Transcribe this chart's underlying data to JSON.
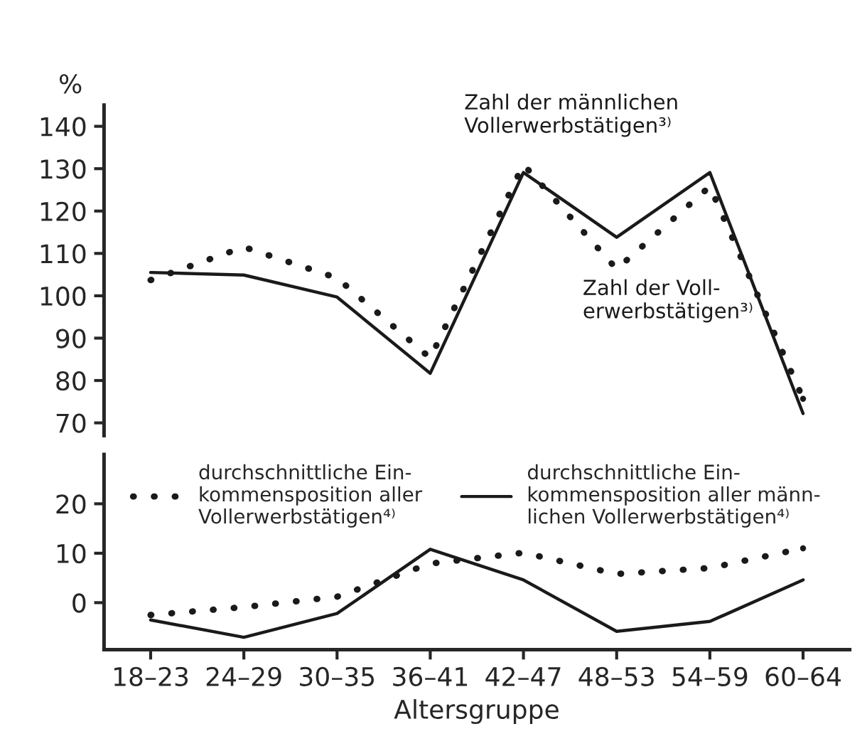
{
  "chart_data": [
    {
      "type": "line",
      "ylabel": "%",
      "ylim": [
        67,
        145
      ],
      "yticks": [
        70,
        80,
        90,
        100,
        110,
        120,
        130,
        140
      ],
      "tick_labels": "y",
      "grid": false,
      "legend": false,
      "series": [
        {
          "name": "Zahl der männlichen\nVollerwerbstätigen³⁾",
          "color": "#1a1a1a",
          "line_style": "solid",
          "values": [
            105.5,
            104.9,
            99.7,
            81.7,
            129.1,
            113.8,
            129.1,
            72.2
          ]
        },
        {
          "name": "Zahl der Voll-\nerwerbstätigen³⁾",
          "color": "#1a1a1a",
          "line_style": "dotted",
          "values": [
            103.7,
            111.5,
            104.2,
            85.3,
            131,
            106.3,
            125.8,
            75.7
          ]
        }
      ]
    },
    {
      "type": "line",
      "xlabel": "Altersgruppe",
      "categories": [
        "18–23",
        "24–29",
        "30–35",
        "36–41",
        "42–47",
        "48–53",
        "54–59",
        "60–64"
      ],
      "ylim": [
        -9.5,
        30
      ],
      "yticks": [
        0,
        10,
        20
      ],
      "grid": false,
      "legend": "top",
      "series": [
        {
          "name": "durchschnittliche Ein-\nkommensposition aller\nVollerwerbstätigen⁴⁾",
          "color": "#1a1a1a",
          "line_style": "dotted",
          "values": [
            -2.5,
            -0.9,
            1.2,
            7.9,
            10.1,
            5.8,
            7,
            11
          ]
        },
        {
          "name": "durchschnittliche Ein-\nkommensposition aller männ-\nlichen Vollerwerbstätigen⁴⁾",
          "color": "#1a1a1a",
          "line_style": "solid",
          "values": [
            -3.5,
            -7,
            -2.2,
            10.8,
            4.6,
            -5.8,
            -3.8,
            4.6
          ]
        }
      ]
    }
  ]
}
